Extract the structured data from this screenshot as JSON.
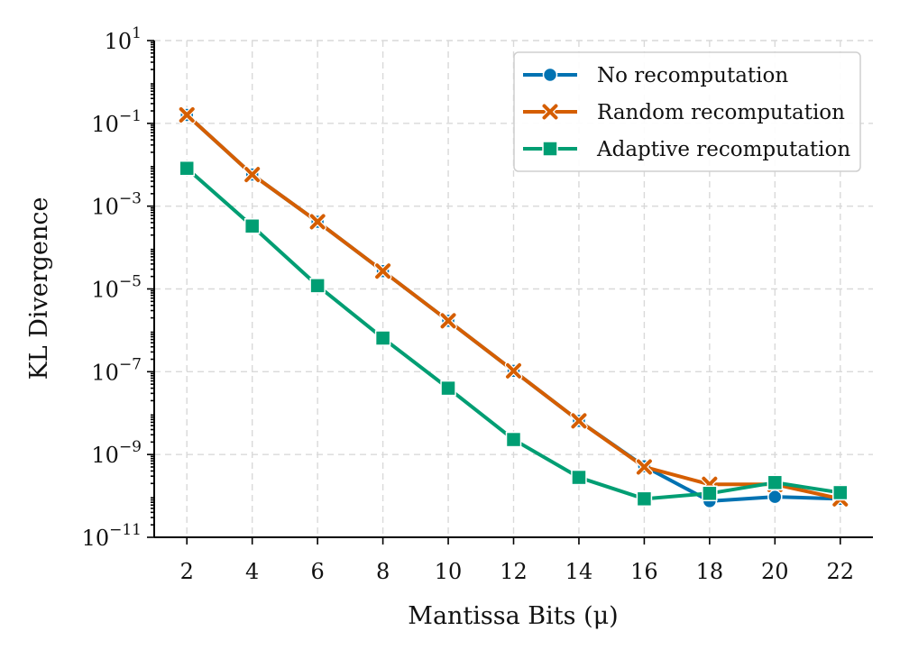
{
  "chart_data": {
    "type": "line",
    "title": "",
    "xlabel": "Mantissa Bits (μ)",
    "ylabel": "KL Divergence",
    "yscale": "log",
    "x": [
      2,
      4,
      6,
      8,
      10,
      12,
      14,
      16,
      18,
      20,
      22
    ],
    "xlim": [
      1,
      23
    ],
    "ylim_exp": [
      -11,
      1
    ],
    "yticks_exp": [
      -11,
      -9,
      -7,
      -5,
      -3,
      -1,
      1
    ],
    "grid": true,
    "legend_position": "top-right",
    "series": [
      {
        "name": "No recomputation",
        "color": "#0072b2",
        "marker": "circle",
        "values": [
          0.16,
          0.0058,
          0.00042,
          2.7e-05,
          1.7e-06,
          1.05e-07,
          6.5e-09,
          5.2e-10,
          7.5e-11,
          9.5e-11,
          8.5e-11
        ]
      },
      {
        "name": "Random recomputation",
        "color": "#d55e00",
        "marker": "x",
        "values": [
          0.16,
          0.0058,
          0.00042,
          2.7e-05,
          1.7e-06,
          1.05e-07,
          6.5e-09,
          5e-10,
          1.9e-10,
          1.9e-10,
          8.5e-11
        ]
      },
      {
        "name": "Adaptive recomputation",
        "color": "#009e73",
        "marker": "square",
        "values": [
          0.0082,
          0.00033,
          1.2e-05,
          6.5e-07,
          4e-08,
          2.3e-09,
          2.8e-10,
          8.5e-11,
          1.15e-10,
          2.1e-10,
          1.2e-10
        ]
      }
    ]
  }
}
